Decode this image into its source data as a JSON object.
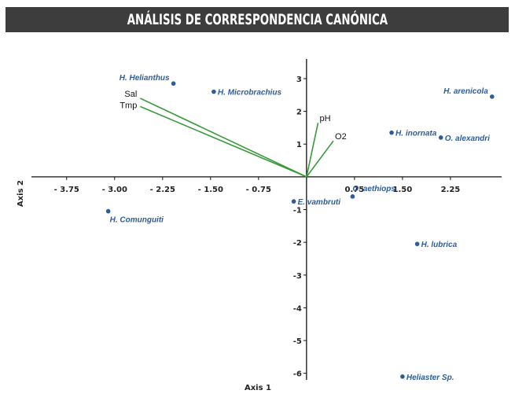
{
  "title": "ANÁLISIS DE CORRESPONDENCIA CANÓNICA",
  "chart_data": {
    "type": "scatter",
    "title": "ANÁLISIS DE CORRESPONDENCIA CANÓNICA",
    "xlabel": "Axis 1",
    "ylabel": "Axis 2",
    "xlim": [
      -4.3,
      3.05
    ],
    "ylim": [
      -6.2,
      3.6
    ],
    "x_ticks": [
      -3.75,
      -3.0,
      -2.25,
      -1.5,
      -0.75,
      0.75,
      1.5,
      2.25
    ],
    "x_tick_labels": [
      "- 3.75",
      "- 3.00",
      "- 2.25",
      "- 1.50",
      "- 0.75",
      "0.75",
      "1.50",
      "2.25"
    ],
    "y_ticks": [
      3,
      2,
      1,
      -1,
      -2,
      -3,
      -4,
      -5,
      -6
    ],
    "y_tick_labels": [
      "3",
      "2",
      "1",
      "-1",
      "-2",
      "-3",
      "-4",
      "-5",
      "-6"
    ],
    "point_color": "#2b5d9e",
    "vector_color": "#3a9a3a",
    "points": [
      {
        "name": "H. Helianthus",
        "x": -2.08,
        "y": 2.85,
        "label_pos": "upper-left"
      },
      {
        "name": "H. Microbrachius",
        "x": -1.45,
        "y": 2.6,
        "label_pos": "right"
      },
      {
        "name": "H. arenicola",
        "x": 2.9,
        "y": 2.45,
        "label_pos": "upper-left"
      },
      {
        "name": "H. inornata",
        "x": 1.33,
        "y": 1.35,
        "label_pos": "right"
      },
      {
        "name": "O. alexandri",
        "x": 2.1,
        "y": 1.2,
        "label_pos": "right"
      },
      {
        "name": "O. aethiops",
        "x": 0.72,
        "y": -0.6,
        "label_pos": "upper-right"
      },
      {
        "name": "E. vambruti",
        "x": -0.2,
        "y": -0.75,
        "label_pos": "right"
      },
      {
        "name": "H. Comunguiti",
        "x": -3.1,
        "y": -1.05,
        "label_pos": "below-right"
      },
      {
        "name": "H. lubrica",
        "x": 1.73,
        "y": -2.05,
        "label_pos": "right"
      },
      {
        "name": "Heliaster Sp.",
        "x": 1.5,
        "y": -6.1,
        "label_pos": "right"
      }
    ],
    "vectors": [
      {
        "name": "Sal",
        "x": -2.6,
        "y": 2.4
      },
      {
        "name": "Tmp",
        "x": -2.6,
        "y": 2.15
      },
      {
        "name": "pH",
        "x": 0.18,
        "y": 1.65
      },
      {
        "name": "O2",
        "x": 0.42,
        "y": 1.1
      }
    ]
  }
}
